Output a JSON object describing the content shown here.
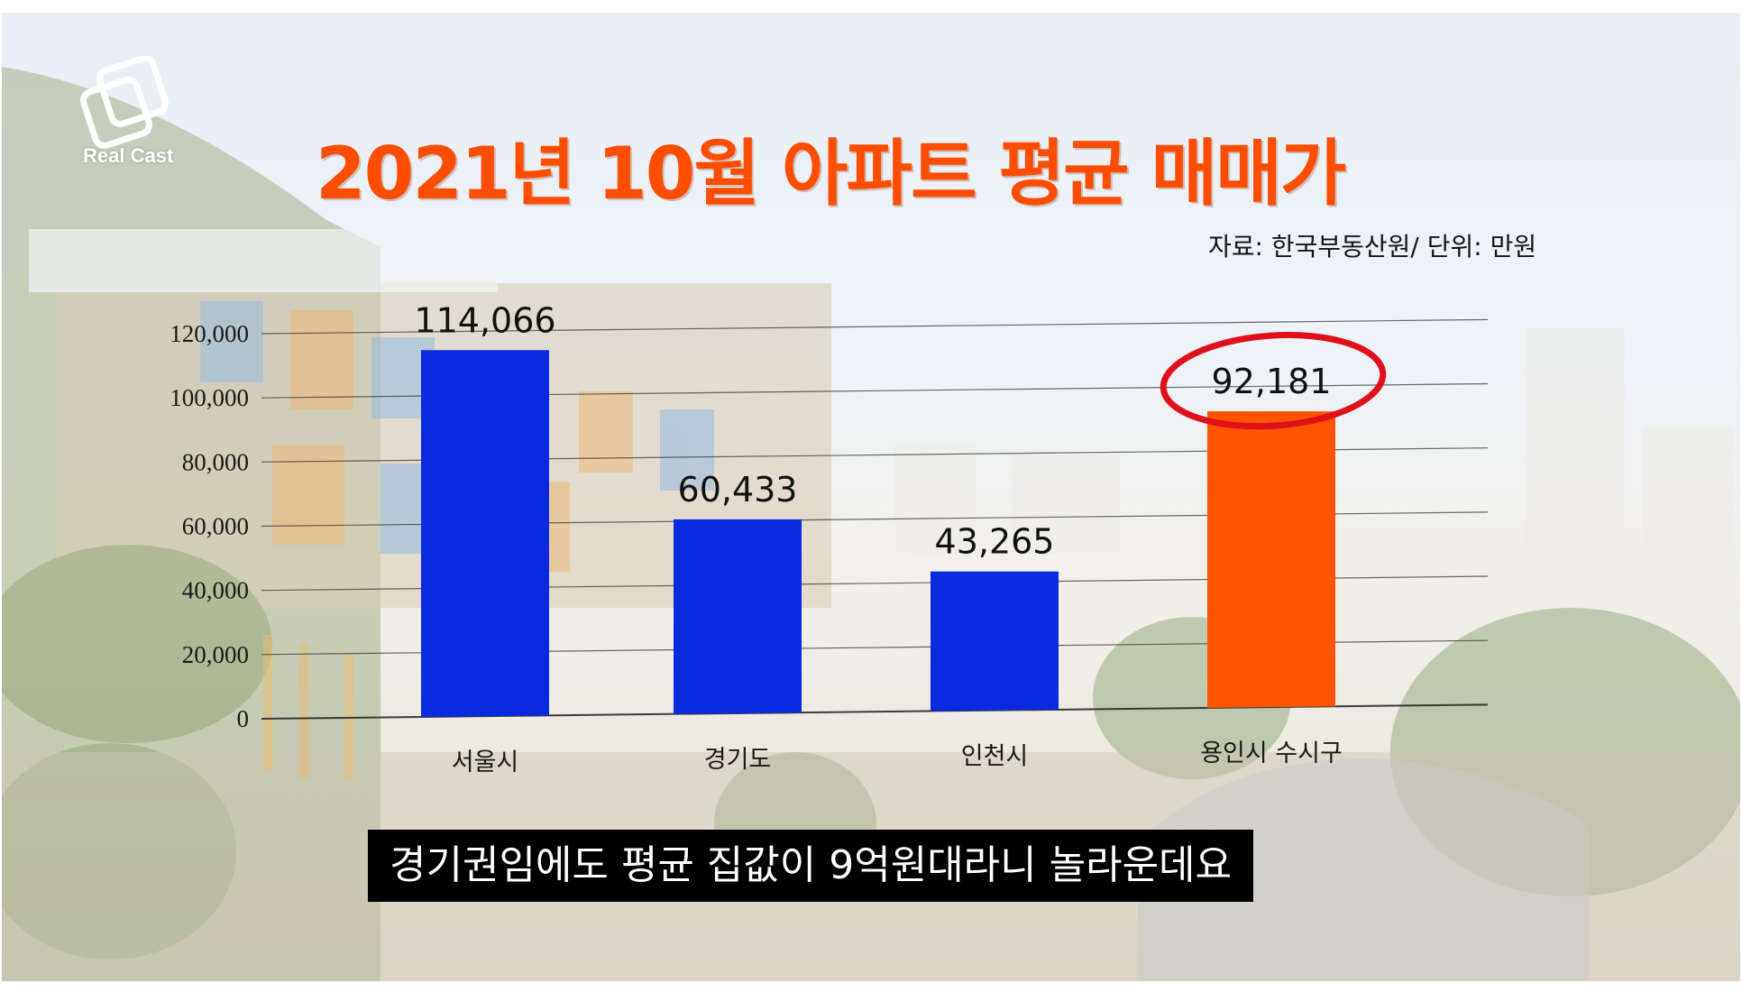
{
  "brand": {
    "logo_text": "Real Cast"
  },
  "title": "2021년 10월 아파트 평균 매매가",
  "source_note": "자료: 한국부동산원/ 단위: 만원",
  "subtitle_caption": "경기권임에도 평균 집값이 9억원대라니 놀라운데요",
  "colors": {
    "title": "#ff4d00",
    "bar_default": "#0a2ae0",
    "bar_highlight": "#ff5500",
    "highlight_circle": "#e0101a",
    "caption_bg": "#000000",
    "caption_text": "#ffffff"
  },
  "chart_data": {
    "type": "bar",
    "categories": [
      "서울시",
      "경기도",
      "인천시",
      "용인시 수시구"
    ],
    "values": [
      114066,
      60433,
      43265,
      92181
    ],
    "value_labels": [
      "114,066",
      "60,433",
      "43,265",
      "92,181"
    ],
    "highlight_index": 3,
    "highlight_marker": "red-circle-around-value-label",
    "yticks": [
      "0",
      "20,000",
      "40,000",
      "60,000",
      "80,000",
      "100,000",
      "120,000"
    ],
    "ylim": [
      0,
      120000
    ],
    "grid": true,
    "legend": "none",
    "title": "2021년 10월 아파트 평균 매매가",
    "xlabel": "",
    "ylabel": ""
  }
}
